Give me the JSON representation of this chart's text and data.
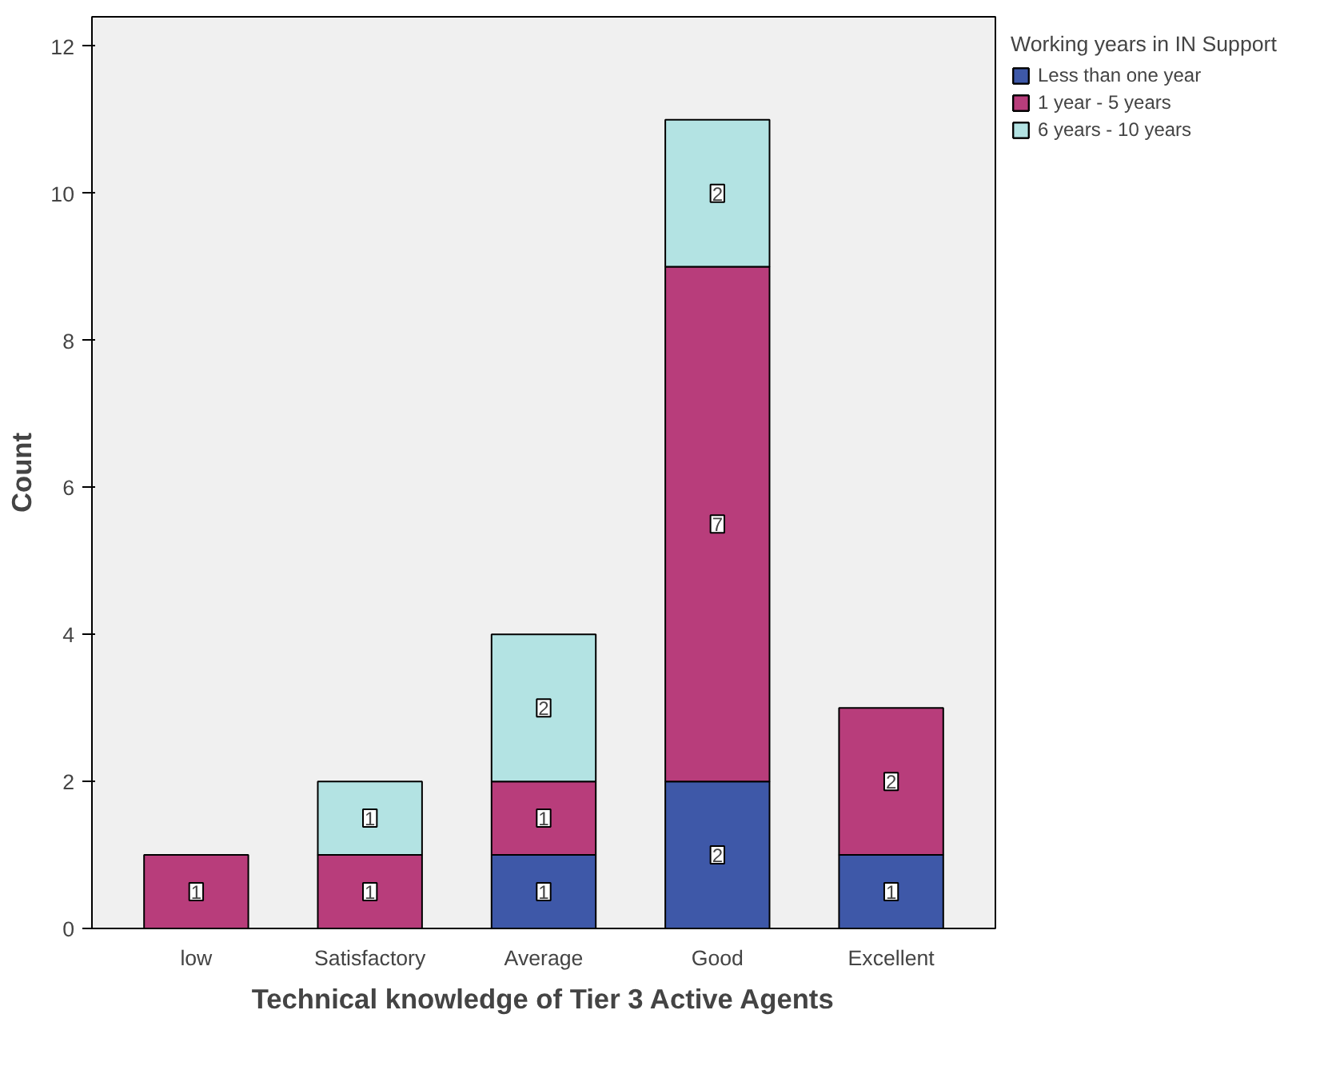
{
  "chart_data": {
    "type": "bar",
    "stacked": true,
    "xlabel": "Technical knowledge of Tier 3 Active Agents",
    "ylabel": "Count",
    "legend_title": "Working years in IN Support",
    "categories": [
      "low",
      "Satisfactory",
      "Average",
      "Good",
      "Excellent"
    ],
    "series": [
      {
        "name": "Less than one year",
        "color": "#3e58a8",
        "values": [
          null,
          null,
          1,
          2,
          1
        ]
      },
      {
        "name": "1 year - 5 years",
        "color": "#b83d7b",
        "values": [
          1,
          1,
          1,
          7,
          2
        ]
      },
      {
        "name": "6 years - 10 years",
        "color": "#b3e3e3",
        "values": [
          null,
          1,
          2,
          2,
          null
        ]
      }
    ],
    "ylim": [
      0,
      12.4
    ],
    "yticks": [
      0,
      2,
      4,
      6,
      8,
      10,
      12
    ],
    "grid": false,
    "legend": "top right",
    "data_labels": true
  }
}
